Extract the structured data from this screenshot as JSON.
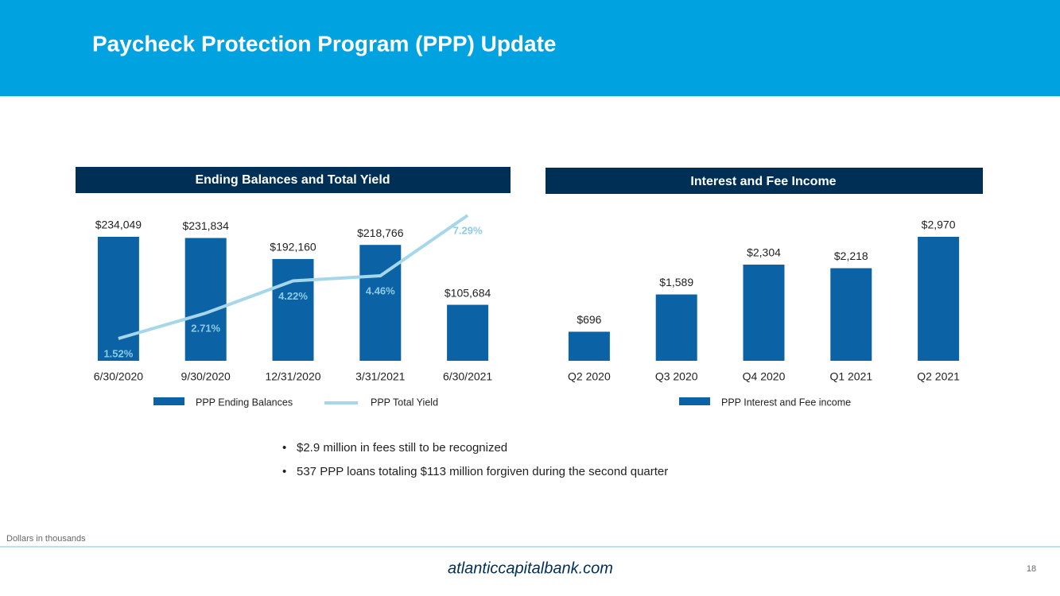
{
  "header": {
    "title": "Paycheck Protection Program (PPP) Update"
  },
  "chart_data": [
    {
      "type": "combo",
      "title": "Ending Balances and Total Yield",
      "categories": [
        "6/30/2020",
        "9/30/2020",
        "12/31/2020",
        "3/31/2021",
        "6/30/2021"
      ],
      "series": [
        {
          "name": "PPP Ending Balances",
          "type": "bar",
          "color": "#0b63a5",
          "values": [
            234049,
            231834,
            192160,
            218766,
            105684
          ],
          "value_labels": [
            "$234,049",
            "$231,834",
            "$192,160",
            "$218,766",
            "$105,684"
          ]
        },
        {
          "name": "PPP Total Yield",
          "type": "line",
          "axis": "y2",
          "color": "#a6d6ea",
          "values": [
            1.52,
            2.71,
            4.22,
            4.46,
            7.29
          ],
          "value_labels": [
            "1.52%",
            "2.71%",
            "4.22%",
            "4.46%",
            "7.29%"
          ]
        }
      ]
    },
    {
      "type": "bar",
      "title": "Interest and Fee Income",
      "categories": [
        "Q2 2020",
        "Q3 2020",
        "Q4 2020",
        "Q1 2021",
        "Q2 2021"
      ],
      "series": [
        {
          "name": "PPP Interest and Fee income",
          "type": "bar",
          "color": "#0b63a5",
          "values": [
            696,
            1589,
            2304,
            2218,
            2970
          ],
          "value_labels": [
            "$696",
            "$1,589",
            "$2,304",
            "$2,218",
            "$2,970"
          ]
        }
      ]
    }
  ],
  "bullets": [
    "$2.9 million in fees still to be recognized",
    "537 PPP loans totaling $113 million forgiven during the second quarter"
  ],
  "footnote": "Dollars in thousands",
  "footer": "atlanticcapitalbank.com",
  "page_number": "18"
}
